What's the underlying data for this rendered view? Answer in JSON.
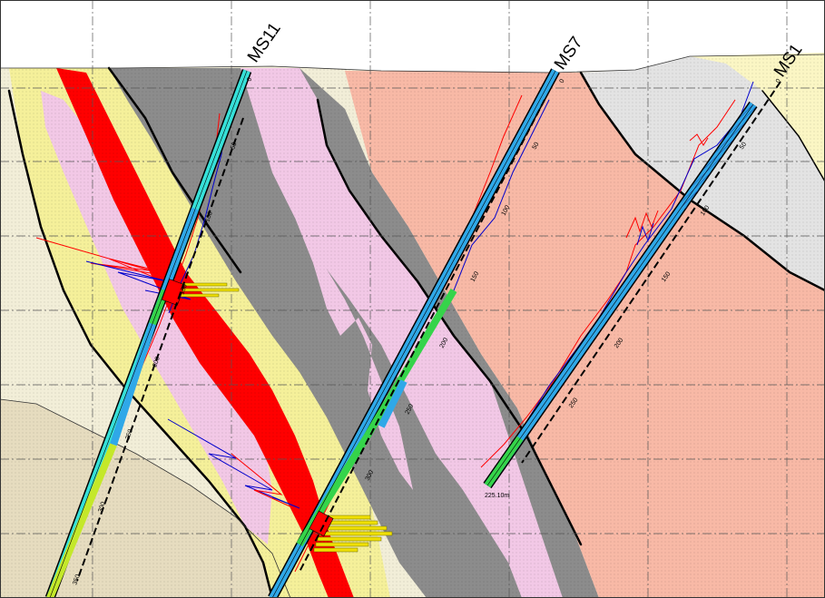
{
  "section": {
    "colors": {
      "background": "#ffffff",
      "grid": "#555555",
      "cream": "#f2eed8",
      "tan": "#e6dcbf",
      "yellow": "#f5f09a",
      "pink": "#f2c8e6",
      "dark_gray": "#8c8c8c",
      "salmon": "#f8b9a6",
      "light_gray": "#e3e3e3",
      "red_zone": "#ff0000",
      "light_yellow": "#fbf6c4",
      "trace_red": "#ff0000",
      "trace_blue": "#0000cc",
      "hole_cyan": "#36e0d8",
      "hole_blue": "#2fa8e8",
      "hole_green": "#35d44a",
      "hole_lime": "#c4e82a",
      "bar_yellow": "#f0e000"
    },
    "drillholes": [
      {
        "name": "MS11",
        "depth_labels": [
          "0",
          "50",
          "100",
          "150",
          "200",
          "250",
          "300",
          "350"
        ]
      },
      {
        "name": "MS7",
        "depth_labels": [
          "0",
          "50",
          "100",
          "150",
          "200",
          "250",
          "300"
        ]
      },
      {
        "name": "MS1",
        "depth_labels": [
          "0",
          "50",
          "100",
          "150",
          "200",
          "250",
          "225.10m"
        ]
      }
    ]
  }
}
